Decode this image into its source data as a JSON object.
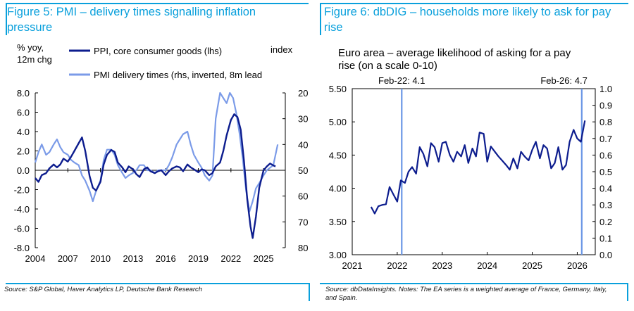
{
  "left": {
    "figure_title": "Figure 5: PMI – delivery times signalling inflation pressure",
    "source": "Source: S&P Global, Haver Analytics LP, Deutsche Bank Research",
    "chart_data": {
      "type": "line",
      "lhs_label": [
        "% yoy,",
        "12m chg"
      ],
      "rhs_label": "index",
      "legend": [
        "PPI, core consumer goods (lhs)",
        "PMI delivery times (rhs, inverted, 8m lead"
      ],
      "colors": {
        "ppi": "#0d1d8e",
        "pmi": "#7b9be8"
      },
      "ylim_lhs": [
        -8,
        8
      ],
      "ylim_rhs_inverted": [
        80,
        20
      ],
      "xlim": [
        2004,
        2027
      ],
      "x_ticks": [
        "2004",
        "2007",
        "2010",
        "2013",
        "2016",
        "2019",
        "2022",
        "2025"
      ],
      "y_ticks_lhs": [
        "8.0",
        "6.0",
        "4.0",
        "2.0",
        "0.0",
        "-2.0",
        "-4.0",
        "-6.0",
        "-8.0"
      ],
      "y_ticks_rhs": [
        "20",
        "30",
        "40",
        "50",
        "60",
        "70",
        "80"
      ],
      "series": [
        {
          "name": "PPI, core consumer goods (lhs)",
          "axis": "lhs",
          "x": [
            2004.0,
            2004.3,
            2004.6,
            2005.0,
            2005.3,
            2005.7,
            2006.0,
            2006.3,
            2006.6,
            2007.0,
            2007.3,
            2007.6,
            2008.0,
            2008.3,
            2008.6,
            2009.0,
            2009.3,
            2009.6,
            2010.0,
            2010.3,
            2010.6,
            2011.0,
            2011.3,
            2011.6,
            2012.0,
            2012.3,
            2012.6,
            2013.0,
            2013.3,
            2013.6,
            2014.0,
            2014.3,
            2014.6,
            2015.0,
            2015.3,
            2015.6,
            2016.0,
            2016.3,
            2016.6,
            2017.0,
            2017.3,
            2017.6,
            2018.0,
            2018.3,
            2018.6,
            2019.0,
            2019.3,
            2019.6,
            2020.0,
            2020.3,
            2020.6,
            2021.0,
            2021.3,
            2021.6,
            2022.0,
            2022.3,
            2022.6,
            2022.9,
            2023.2,
            2023.5,
            2023.8,
            2024.0,
            2024.3,
            2024.6,
            2025.0,
            2025.3,
            2025.6,
            2025.9,
            2026.1
          ],
          "y": [
            -0.8,
            -1.2,
            -0.5,
            -0.3,
            0.2,
            0.6,
            0.3,
            0.6,
            1.2,
            0.9,
            1.4,
            2.0,
            2.8,
            3.4,
            2.0,
            -0.6,
            -1.8,
            -2.1,
            -1.2,
            0.6,
            1.6,
            2.1,
            1.9,
            0.8,
            0.3,
            -0.2,
            0.4,
            0.1,
            -0.4,
            -0.7,
            0.1,
            0.3,
            -0.1,
            -0.3,
            -0.1,
            0.0,
            -0.5,
            -0.1,
            0.2,
            0.4,
            0.3,
            -0.1,
            0.6,
            0.3,
            0.1,
            -0.2,
            0.1,
            0.0,
            -0.5,
            -0.3,
            0.4,
            0.8,
            2.0,
            3.6,
            5.2,
            5.8,
            5.5,
            4.2,
            1.0,
            -3.0,
            -5.8,
            -7.0,
            -4.8,
            -1.8,
            0.0,
            0.4,
            0.7,
            0.5,
            0.4
          ]
        },
        {
          "name": "PMI delivery times (rhs, inverted, 8m lead",
          "axis": "rhs",
          "x": [
            2004.0,
            2004.3,
            2004.6,
            2005.0,
            2005.3,
            2005.7,
            2006.0,
            2006.3,
            2006.6,
            2007.0,
            2007.3,
            2007.6,
            2008.0,
            2008.3,
            2008.6,
            2009.0,
            2009.3,
            2009.6,
            2010.0,
            2010.3,
            2010.6,
            2011.0,
            2011.3,
            2011.6,
            2012.0,
            2012.3,
            2012.6,
            2013.0,
            2013.3,
            2013.6,
            2014.0,
            2014.3,
            2014.6,
            2015.0,
            2015.3,
            2015.6,
            2016.0,
            2016.3,
            2016.6,
            2017.0,
            2017.3,
            2017.6,
            2018.0,
            2018.3,
            2018.6,
            2019.0,
            2019.3,
            2019.6,
            2020.0,
            2020.3,
            2020.6,
            2021.0,
            2021.3,
            2021.6,
            2021.9,
            2022.2,
            2022.5,
            2022.8,
            2023.1,
            2023.4,
            2023.7,
            2024.0,
            2024.3,
            2024.6,
            2025.0,
            2025.3,
            2025.6,
            2025.9,
            2026.3
          ],
          "y": [
            47,
            43,
            40,
            44,
            43,
            40,
            38,
            41,
            43,
            44,
            46,
            47,
            48,
            52,
            54,
            58,
            62,
            58,
            54,
            46,
            42,
            42,
            44,
            48,
            51,
            53,
            52,
            51,
            50,
            48,
            48,
            50,
            50,
            51,
            50,
            50,
            50,
            48,
            45,
            40,
            38,
            36,
            35,
            40,
            44,
            47,
            49,
            52,
            54,
            52,
            30,
            20,
            22,
            24,
            20,
            22,
            28,
            36,
            46,
            58,
            66,
            62,
            57,
            55,
            52,
            50,
            49,
            48,
            40
          ]
        }
      ]
    }
  },
  "right": {
    "figure_title": "Figure 6: dbDIG – households more likely to ask for pay rise",
    "source": "Source: dbDataInsights.  Notes: The EA series is a weighted average of France, Germany, Italy, and Spain.",
    "chart_data": {
      "type": "line",
      "title": [
        "Euro area – average likelihood of asking for a pay",
        "rise (on a scale 0-10)"
      ],
      "annotations": [
        "Feb-22: 4.1",
        "Feb-26: 4.7"
      ],
      "annotation_x": [
        2022.1,
        2026.1
      ],
      "color_line": "#0d1d8e",
      "color_marker": "#6b97e6",
      "ylim_lhs": [
        3.0,
        5.5
      ],
      "ylim_rhs": [
        0.0,
        1.0
      ],
      "xlim": [
        2021,
        2026.4
      ],
      "x_ticks": [
        "2021",
        "2022",
        "2023",
        "2024",
        "2025",
        "2026"
      ],
      "y_ticks_lhs": [
        "5.50",
        "5.00",
        "4.50",
        "4.00",
        "3.50",
        "3.00"
      ],
      "y_ticks_rhs": [
        "1.0",
        "0.9",
        "0.8",
        "0.7",
        "0.6",
        "0.5",
        "0.4",
        "0.3",
        "0.2",
        "0.1",
        "0.0"
      ],
      "series": [
        {
          "name": "EA",
          "x": [
            2021.42,
            2021.5,
            2021.58,
            2021.67,
            2021.75,
            2021.83,
            2021.92,
            2022.0,
            2022.08,
            2022.17,
            2022.25,
            2022.33,
            2022.42,
            2022.5,
            2022.58,
            2022.67,
            2022.75,
            2022.83,
            2022.92,
            2023.0,
            2023.08,
            2023.17,
            2023.25,
            2023.33,
            2023.42,
            2023.5,
            2023.58,
            2023.67,
            2023.75,
            2023.83,
            2023.92,
            2024.0,
            2024.08,
            2024.17,
            2024.25,
            2024.33,
            2024.42,
            2024.5,
            2024.58,
            2024.67,
            2024.75,
            2024.83,
            2024.92,
            2025.0,
            2025.08,
            2025.17,
            2025.25,
            2025.33,
            2025.42,
            2025.5,
            2025.58,
            2025.67,
            2025.75,
            2025.83,
            2025.92,
            2026.0,
            2026.08,
            2026.17
          ],
          "y": [
            3.72,
            3.62,
            3.73,
            3.75,
            3.76,
            4.02,
            3.9,
            3.8,
            4.12,
            4.08,
            4.25,
            4.32,
            4.22,
            4.62,
            4.52,
            4.33,
            4.68,
            4.62,
            4.4,
            4.68,
            4.7,
            4.5,
            4.4,
            4.55,
            4.48,
            4.65,
            4.38,
            4.6,
            4.48,
            4.84,
            4.82,
            4.4,
            4.63,
            4.55,
            4.48,
            4.42,
            4.35,
            4.28,
            4.45,
            4.3,
            4.55,
            4.48,
            4.42,
            4.58,
            4.7,
            4.45,
            4.65,
            4.6,
            4.3,
            4.38,
            4.62,
            4.28,
            4.35,
            4.7,
            4.88,
            4.75,
            4.7,
            5.02
          ]
        }
      ]
    }
  }
}
